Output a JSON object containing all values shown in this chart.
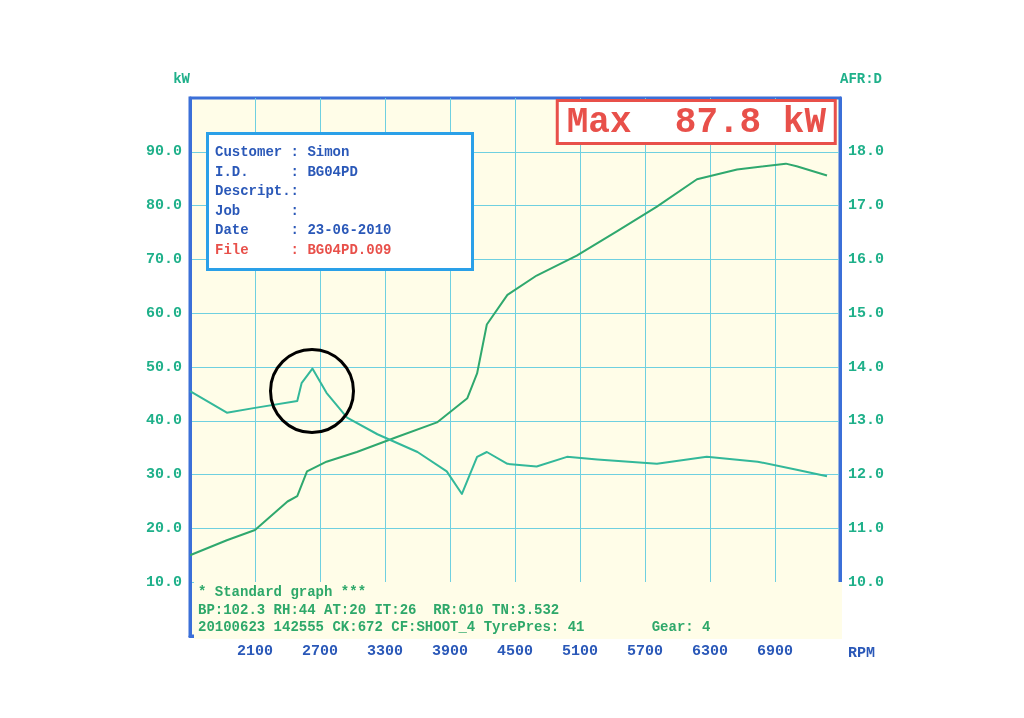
{
  "chart_data": {
    "type": "line",
    "title": "Max  87.8 kW",
    "xlabel": "RPM",
    "ylabel": "kW",
    "y2label": "AFR:D",
    "annotations": [
      "Customer : Simon",
      "I.D.     : BG04PD",
      "Descript.:",
      "Job      :",
      "Date     : 23-06-2010",
      "File     : BG04PD.009",
      "* Standard graph ***",
      "BP:102.3 RH:44 AT:20 IT:26  RR:010 TN:3.532",
      "20100623 142555 CK:672 CF:SHOOT_4 TyrePres: 41        Gear: 4"
    ],
    "xlim": [
      1500,
      7500
    ],
    "xticks": [
      2100,
      2700,
      3300,
      3900,
      4500,
      5100,
      5700,
      6300,
      6900
    ],
    "ylim": [
      0,
      100
    ],
    "yticks": [
      {
        "value": 10,
        "label": "10.0"
      },
      {
        "value": 20,
        "label": "20.0"
      },
      {
        "value": 30,
        "label": "30.0"
      },
      {
        "value": 40,
        "label": "40.0"
      },
      {
        "value": 50,
        "label": "50.0"
      },
      {
        "value": 60,
        "label": "60.0"
      },
      {
        "value": 70,
        "label": "70.0"
      },
      {
        "value": 80,
        "label": "80.0"
      },
      {
        "value": 90,
        "label": "90.0"
      }
    ],
    "y2lim": [
      9,
      19
    ],
    "y2ticks": [
      {
        "value": 10,
        "label": "10.0"
      },
      {
        "value": 11,
        "label": "11.0"
      },
      {
        "value": 12,
        "label": "12.0"
      },
      {
        "value": 13,
        "label": "13.0"
      },
      {
        "value": 14,
        "label": "14.0"
      },
      {
        "value": 15,
        "label": "15.0"
      },
      {
        "value": 16,
        "label": "16.0"
      },
      {
        "value": 17,
        "label": "17.0"
      },
      {
        "value": 18,
        "label": "18.0"
      }
    ],
    "grid": true,
    "marker": "none",
    "line_style": "solid",
    "series": [
      {
        "color": "#2fa86e",
        "x": [
          1500,
          1840,
          2100,
          2400,
          2490,
          2580,
          2760,
          3040,
          3410,
          3780,
          4060,
          4150,
          4240,
          4430,
          4700,
          5070,
          5440,
          5810,
          6180,
          6550,
          7000,
          7100,
          7380
        ],
        "values": [
          15,
          17.8,
          19.7,
          25,
          26,
          30.6,
          32.4,
          34.2,
          37,
          39.7,
          44.2,
          48.8,
          57.9,
          63.4,
          67,
          70.7,
          75.2,
          79.8,
          84.9,
          86.7,
          87.8,
          87.3,
          85.6
        ]
      },
      {
        "color": "#33b89a",
        "axis": "y2",
        "x": [
          1500,
          1840,
          2100,
          2490,
          2530,
          2630,
          2760,
          2950,
          3230,
          3600,
          3870,
          4010,
          4150,
          4240,
          4430,
          4700,
          4980,
          5260,
          5810,
          6270,
          6740,
          7100,
          7380
        ],
        "values": [
          13.55,
          13.15,
          13.24,
          13.37,
          13.7,
          13.97,
          13.52,
          13.06,
          12.75,
          12.42,
          12.06,
          11.64,
          12.33,
          12.42,
          12.2,
          12.15,
          12.33,
          12.28,
          12.2,
          12.33,
          12.24,
          12.09,
          11.97
        ]
      }
    ]
  }
}
